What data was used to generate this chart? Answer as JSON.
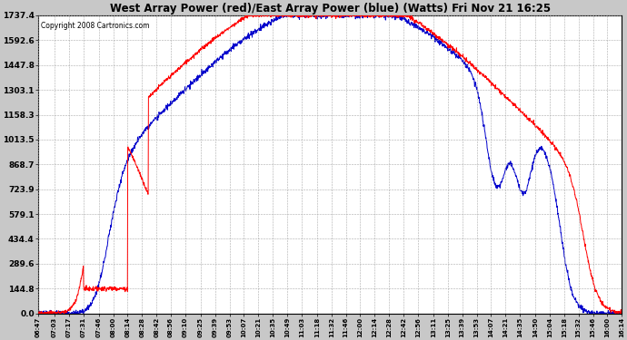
{
  "title": "West Array Power (red)/East Array Power (blue) (Watts) Fri Nov 21 16:25",
  "copyright": "Copyright 2008 Cartronics.com",
  "ymax": 1737.4,
  "yticks": [
    0.0,
    144.8,
    289.6,
    434.4,
    579.1,
    723.9,
    868.7,
    1013.5,
    1158.3,
    1303.1,
    1447.8,
    1592.6,
    1737.4
  ],
  "bg_color": "#c8c8c8",
  "plot_bg": "#ffffff",
  "red_color": "#ff0000",
  "blue_color": "#0000cc",
  "grid_color": "#aaaaaa",
  "x_tick_labels": [
    "06:47",
    "07:03",
    "07:17",
    "07:31",
    "07:46",
    "08:00",
    "08:14",
    "08:28",
    "08:42",
    "08:56",
    "09:10",
    "09:25",
    "09:39",
    "09:53",
    "10:07",
    "10:21",
    "10:35",
    "10:49",
    "11:03",
    "11:18",
    "11:32",
    "11:46",
    "12:00",
    "12:14",
    "12:28",
    "12:42",
    "12:56",
    "13:11",
    "13:25",
    "13:39",
    "13:53",
    "14:07",
    "14:21",
    "14:35",
    "14:50",
    "15:04",
    "15:18",
    "15:32",
    "15:46",
    "16:00",
    "16:14"
  ],
  "figwidth": 6.9,
  "figheight": 3.75,
  "dpi": 100
}
